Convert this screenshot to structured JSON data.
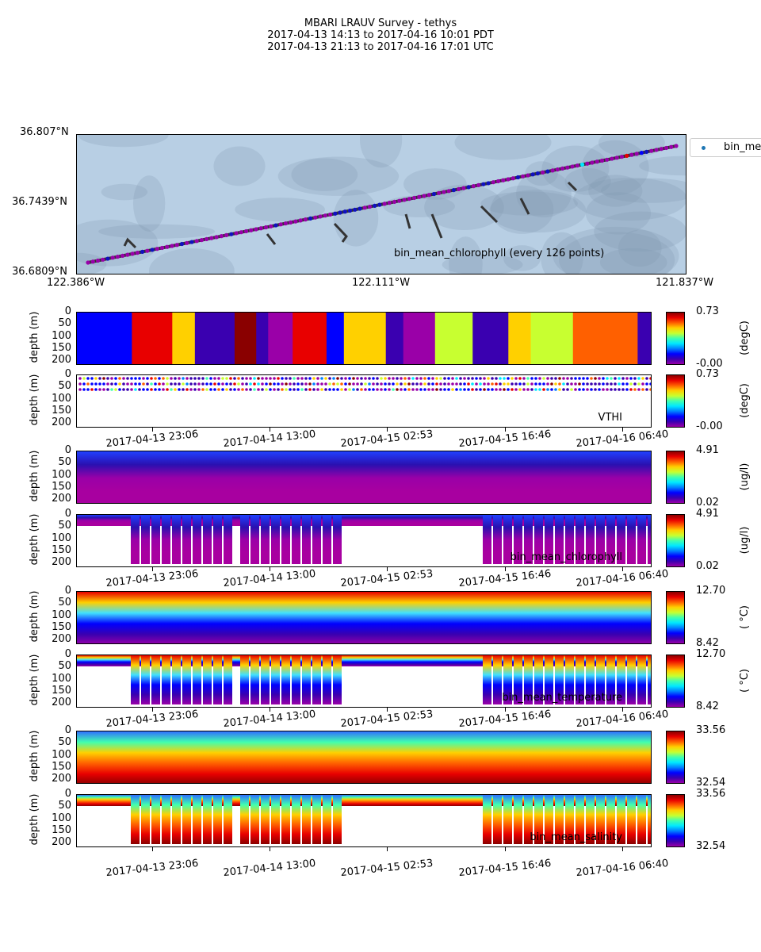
{
  "title": {
    "line1": "MBARI LRAUV Survey - tethys",
    "line2": "2017-04-13 14:13  to  2017-04-16 10:01 PDT",
    "line3": "2017-04-13 21:13  to  2017-04-16 17:01 UTC"
  },
  "map": {
    "lat_ticks": [
      "36.807°N",
      "36.7439°N",
      "36.6809°N"
    ],
    "lon_ticks": [
      "122.386°W",
      "122.111°W",
      "121.837°W"
    ],
    "legend": "bin_mean_chlorophyll",
    "annotation": "bin_mean_chlorophyll (every 126 points)",
    "track_color": "#333333",
    "point_color": "#9900aa"
  },
  "colormap": [
    "#9a00a8",
    "#3a00b0",
    "#0000ff",
    "#0080ff",
    "#00e8ff",
    "#40ffb0",
    "#c8ff30",
    "#ffd000",
    "#ff6000",
    "#e80000",
    "#8a0000"
  ],
  "chart_data": {
    "type": "heatmap",
    "xlabel_ticks": [
      "2017-04-13 23:06",
      "2017-04-14 13:00",
      "2017-04-15 02:53",
      "2017-04-15 16:46",
      "2017-04-16 06:40"
    ],
    "ylabel": "depth (m)",
    "ylim": [
      216,
      0
    ],
    "yticks": [
      "0",
      "50",
      "100",
      "150",
      "200"
    ],
    "panels": [
      {
        "variable": "VTHI",
        "kind": "interpolated",
        "vmin": "-0.00",
        "vmax": "0.73",
        "units": "(degC)",
        "label": ""
      },
      {
        "variable": "VTHI",
        "kind": "scatter",
        "vmin": "-0.00",
        "vmax": "0.73",
        "units": "(degC)",
        "label": "VTHI"
      },
      {
        "variable": "bin_mean_chlorophyll",
        "kind": "interpolated",
        "vmin": "0.02",
        "vmax": "4.91",
        "units": "(ug/l)",
        "label": ""
      },
      {
        "variable": "bin_mean_chlorophyll",
        "kind": "scatter",
        "vmin": "0.02",
        "vmax": "4.91",
        "units": "(ug/l)",
        "label": "bin_mean_chlorophyll"
      },
      {
        "variable": "bin_mean_temperature",
        "kind": "interpolated",
        "vmin": "8.42",
        "vmax": "12.70",
        "units": "( °C)",
        "label": ""
      },
      {
        "variable": "bin_mean_temperature",
        "kind": "scatter",
        "vmin": "8.42",
        "vmax": "12.70",
        "units": "( °C)",
        "label": "bin_mean_temperature"
      },
      {
        "variable": "bin_mean_salinity",
        "kind": "interpolated",
        "vmin": "32.54",
        "vmax": "33.56",
        "units": "",
        "label": ""
      },
      {
        "variable": "bin_mean_salinity",
        "kind": "scatter",
        "vmin": "32.54",
        "vmax": "33.56",
        "units": "",
        "label": "bin_mean_salinity"
      }
    ]
  }
}
